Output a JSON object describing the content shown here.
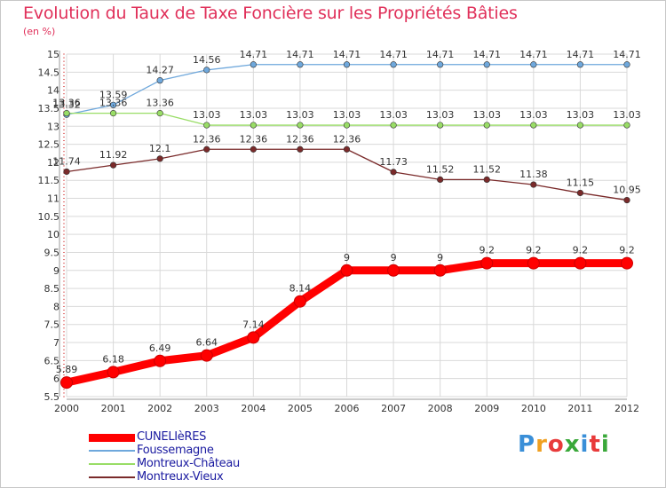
{
  "title": "Evolution du Taux de Taxe Foncière sur les Propriétés Bâties",
  "subtitle": "(en %)",
  "logo": {
    "text": "Proxiti",
    "colors": [
      "#3a8fd8",
      "#f0a020",
      "#e83a3a",
      "#3aa83a",
      "#3a8fd8",
      "#e83a3a",
      "#3aa83a"
    ]
  },
  "chart_data": {
    "type": "line",
    "title": "Evolution du Taux de Taxe Foncière sur les Propriétés Bâties",
    "ylabel": "(en %)",
    "xlabel": "",
    "x": [
      "2000",
      "2001",
      "2002",
      "2003",
      "2004",
      "2005",
      "2006",
      "2007",
      "2008",
      "2009",
      "2010",
      "2011",
      "2012"
    ],
    "ylim": [
      5.5,
      15
    ],
    "yticks": [
      "5.5",
      "6",
      "6.5",
      "7",
      "7.5",
      "8",
      "8.5",
      "9",
      "9.5",
      "10",
      "10.5",
      "11",
      "11.5",
      "12",
      "12.5",
      "13",
      "13.5",
      "14",
      "14.5",
      "15"
    ],
    "grid": true,
    "legend_position": "bottom-left",
    "series": [
      {
        "name": "CUNELIèRES",
        "color": "#ff0000",
        "values": [
          5.89,
          6.18,
          6.49,
          6.64,
          7.14,
          8.14,
          9,
          9,
          9,
          9.2,
          9.2,
          9.2,
          9.2
        ],
        "labels": [
          "5.89",
          "6.18",
          "6.49",
          "6.64",
          "7.14",
          "8.14",
          "9",
          "9",
          "9",
          "9.2",
          "9.2",
          "9.2",
          "9.2"
        ]
      },
      {
        "name": "Foussemagne",
        "color": "#6fa8dc",
        "values": [
          13.32,
          13.59,
          14.27,
          14.56,
          14.71,
          14.71,
          14.71,
          14.71,
          14.71,
          14.71,
          14.71,
          14.71,
          14.71
        ],
        "labels": [
          "13.32",
          "13.59",
          "14.27",
          "14.56",
          "14.71",
          "14.71",
          "14.71",
          "14.71",
          "14.71",
          "14.71",
          "14.71",
          "14.71",
          "14.71"
        ]
      },
      {
        "name": "Montreux-Château",
        "color": "#99dd66",
        "values": [
          13.36,
          13.36,
          13.36,
          13.03,
          13.03,
          13.03,
          13.03,
          13.03,
          13.03,
          13.03,
          13.03,
          13.03,
          13.03
        ],
        "labels": [
          "13.36",
          "13.36",
          "13.36",
          "13.03",
          "13.03",
          "13.03",
          "13.03",
          "13.03",
          "13.03",
          "13.03",
          "13.03",
          "13.03",
          "13.03"
        ]
      },
      {
        "name": "Montreux-Vieux",
        "color": "#7a2a2a",
        "values": [
          11.74,
          11.92,
          12.1,
          12.36,
          12.36,
          12.36,
          12.36,
          11.73,
          11.52,
          11.52,
          11.38,
          11.15,
          10.95
        ],
        "labels": [
          "11.74",
          "11.92",
          "12.1",
          "12.36",
          "12.36",
          "12.36",
          "12.36",
          "11.73",
          "11.52",
          "11.52",
          "11.38",
          "11.15",
          "10.95"
        ]
      }
    ]
  }
}
